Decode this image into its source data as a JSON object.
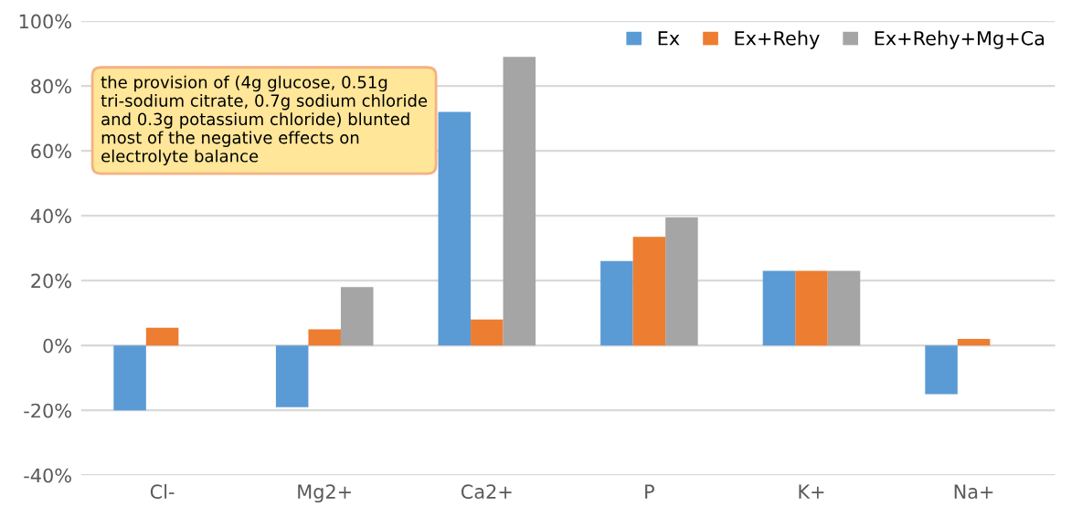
{
  "chart_data": {
    "type": "bar",
    "categories": [
      "Cl-",
      "Mg2+",
      "Ca2+",
      "P",
      "K+",
      "Na+"
    ],
    "series": [
      {
        "name": "Ex",
        "color": "#5b9bd5",
        "values": [
          -20,
          -19,
          72,
          26,
          23,
          -15
        ]
      },
      {
        "name": "Ex+Rehy",
        "color": "#ed7d31",
        "values": [
          5.5,
          5,
          8,
          33.5,
          23,
          2
        ]
      },
      {
        "name": "Ex+Rehy+Mg+Ca",
        "color": "#a5a5a5",
        "values": [
          null,
          18,
          89,
          39.5,
          23,
          null
        ]
      }
    ],
    "ylim": [
      -40,
      100
    ],
    "yticks": [
      {
        "value": -40,
        "label": "-40%"
      },
      {
        "value": -20,
        "label": "-20%"
      },
      {
        "value": 0,
        "label": "0%"
      },
      {
        "value": 20,
        "label": "20%"
      },
      {
        "value": 40,
        "label": "40%"
      },
      {
        "value": 60,
        "label": "60%"
      },
      {
        "value": 80,
        "label": "80%"
      },
      {
        "value": 100,
        "label": "100%"
      }
    ],
    "grid": "y",
    "legend": "top right",
    "annotations": [
      "the provision of (4g glucose, 0.51g tri-sodium citrate, 0.7g sodium chloride and 0.3g potassium chloride) blunted most of the negative effects on electrolyte balance"
    ]
  }
}
